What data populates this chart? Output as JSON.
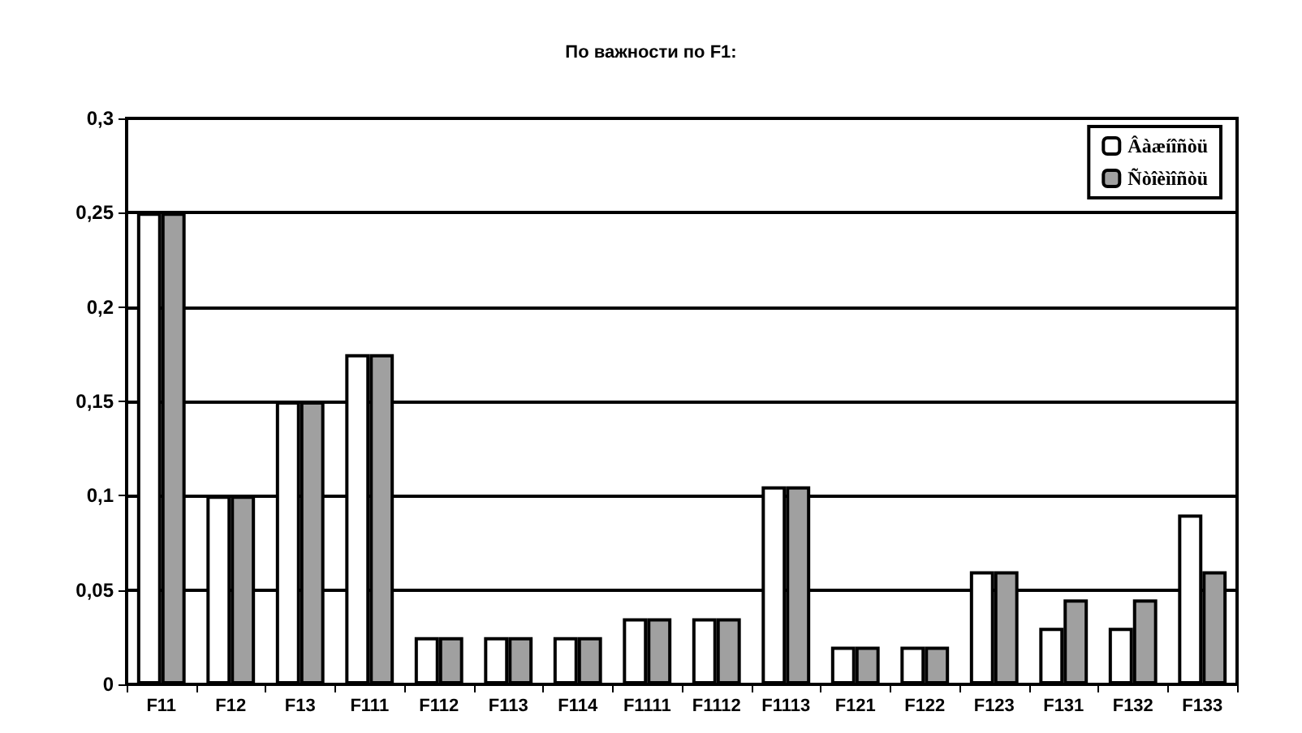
{
  "chart_data": {
    "type": "bar",
    "title": "По важности по F1:",
    "categories": [
      "F11",
      "F12",
      "F13",
      "F111",
      "F112",
      "F113",
      "F114",
      "F1111",
      "F1112",
      "F1113",
      "F121",
      "F122",
      "F123",
      "F131",
      "F132",
      "F133"
    ],
    "series": [
      {
        "name": "Âàæíîñòü",
        "color": "#ffffff",
        "values": [
          0.25,
          0.1,
          0.15,
          0.175,
          0.025,
          0.025,
          0.025,
          0.035,
          0.035,
          0.105,
          0.02,
          0.02,
          0.06,
          0.03,
          0.03,
          0.09
        ]
      },
      {
        "name": "Ñòîèìîñòü",
        "color": "#a0a0a0",
        "values": [
          0.25,
          0.1,
          0.15,
          0.175,
          0.025,
          0.025,
          0.025,
          0.035,
          0.035,
          0.105,
          0.02,
          0.02,
          0.06,
          0.045,
          0.045,
          0.06
        ]
      }
    ],
    "ylim": [
      0,
      0.3
    ],
    "yticks": [
      0,
      {
        "value": 0.05,
        "label": "0,05"
      },
      {
        "value": 0.1,
        "label": "0,1"
      },
      {
        "value": 0.15,
        "label": "0,15"
      },
      {
        "value": 0.2,
        "label": "0,2"
      },
      {
        "value": 0.25,
        "label": "0,25"
      },
      {
        "value": 0.3,
        "label": "0,3"
      }
    ],
    "grid": "y",
    "legend": "top right"
  }
}
